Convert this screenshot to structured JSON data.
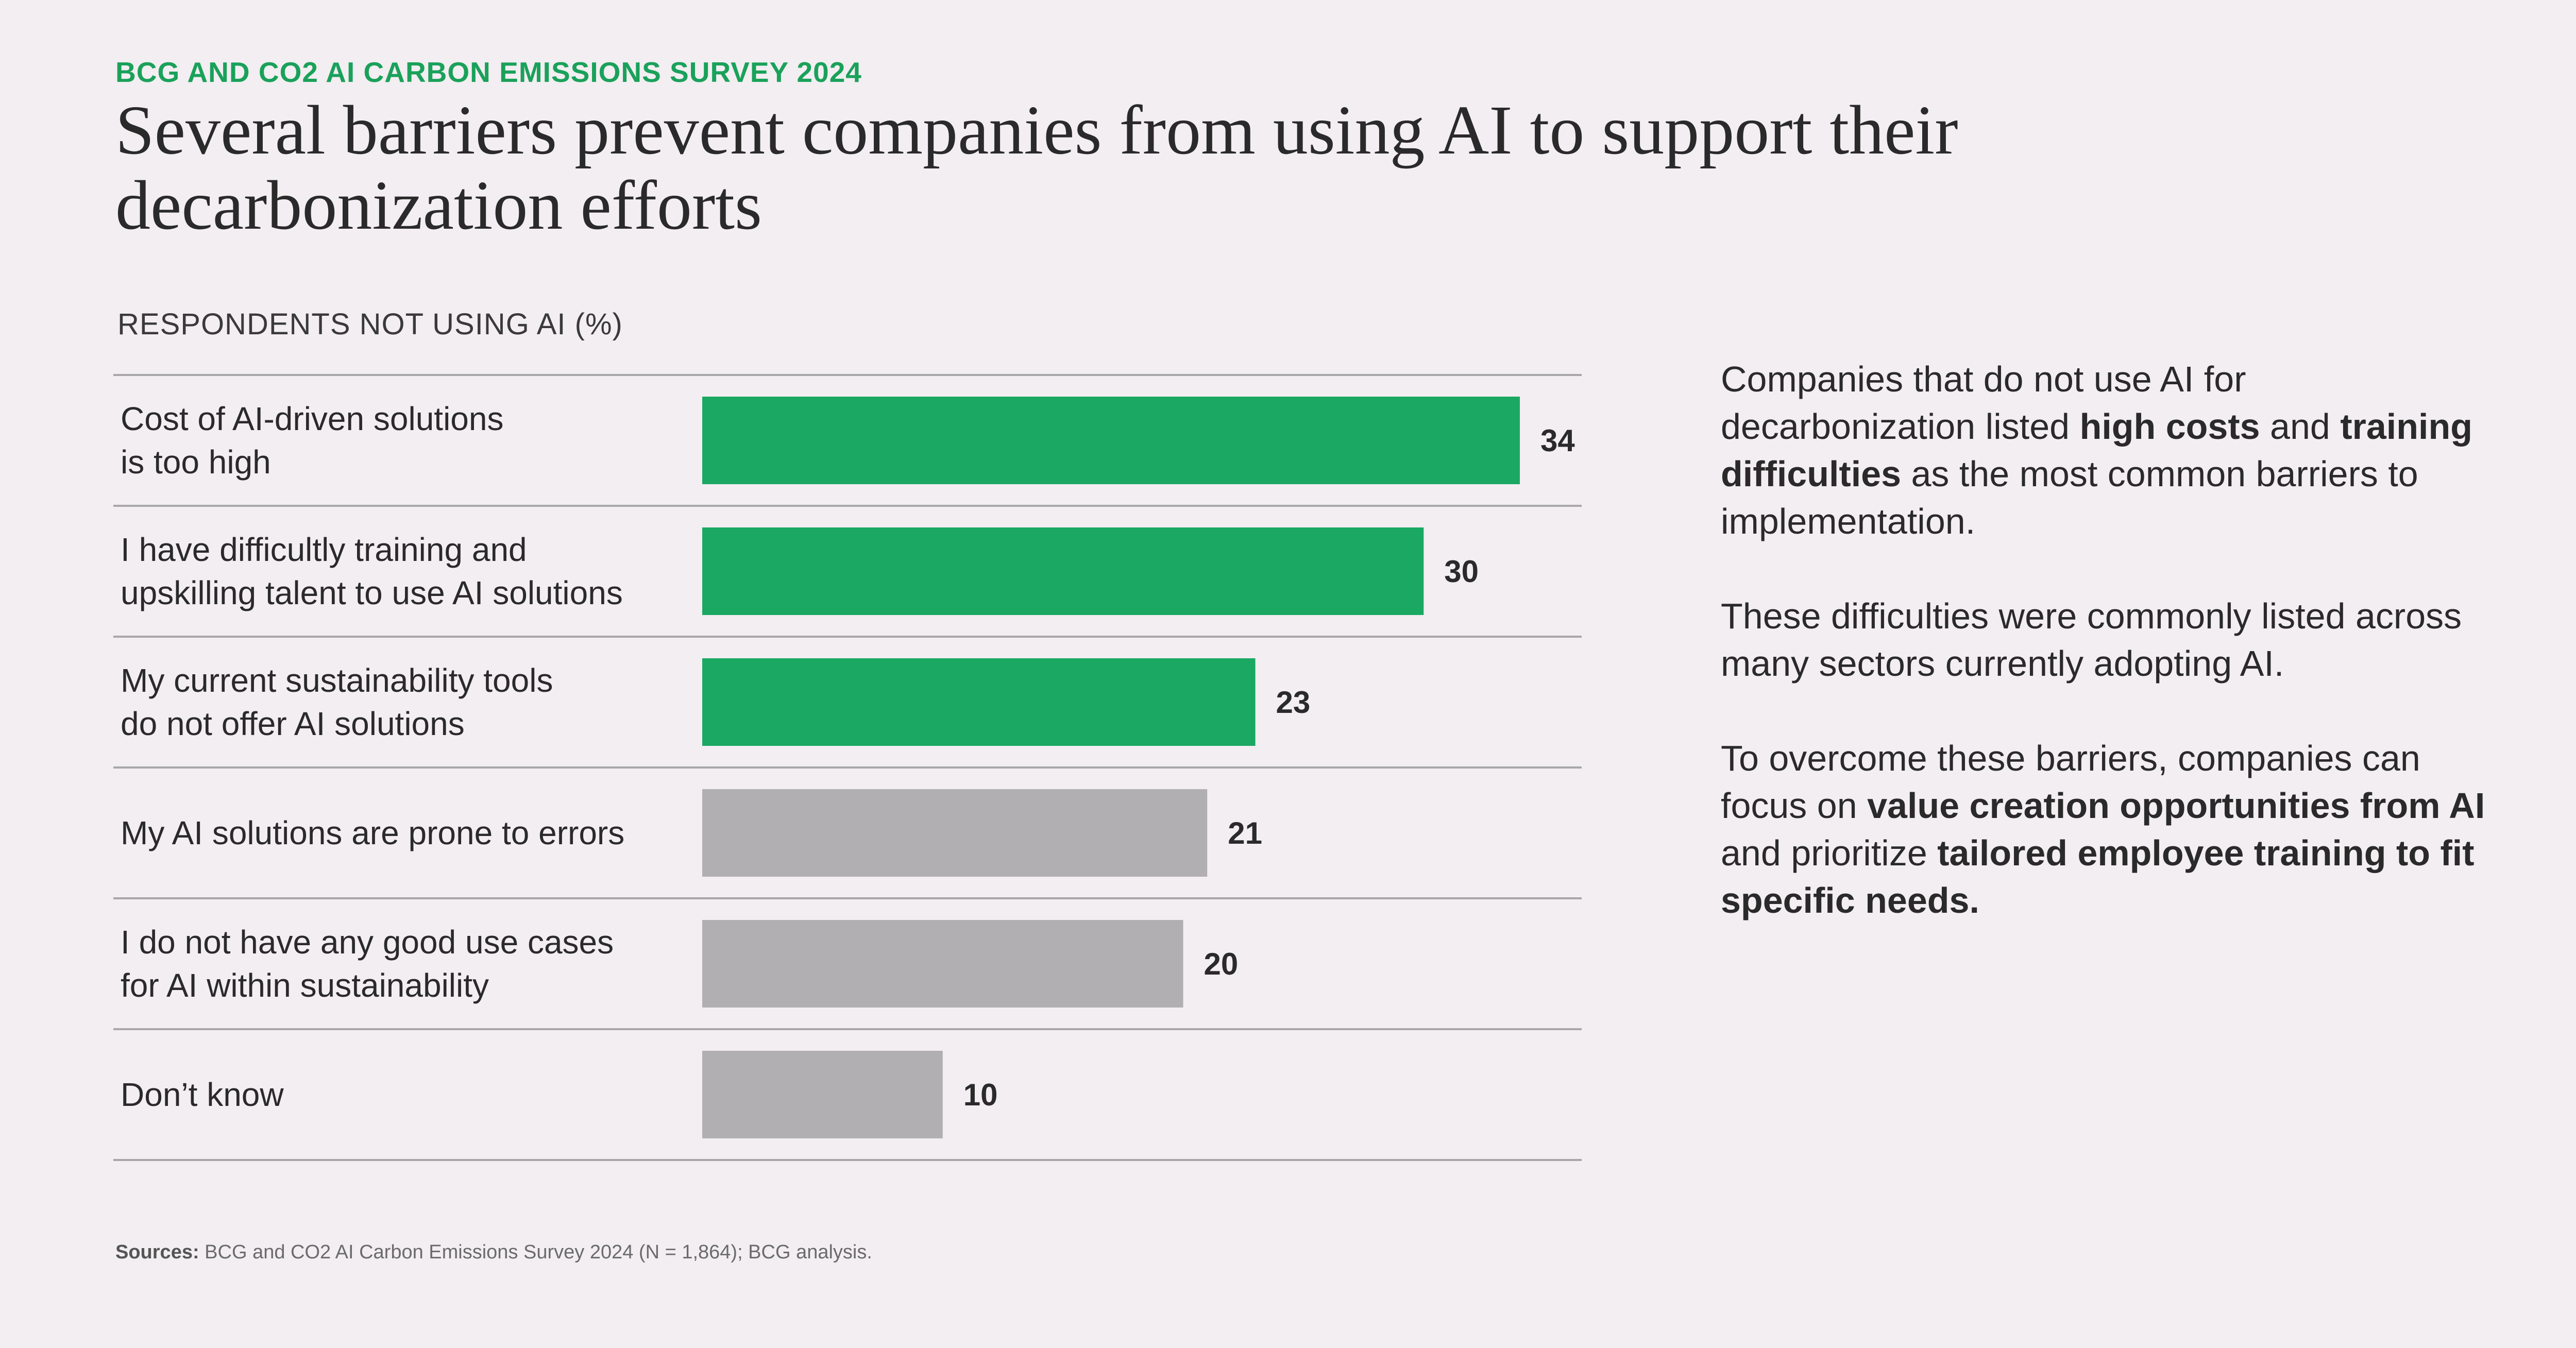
{
  "header": {
    "kicker": "BCG AND CO2 AI CARBON EMISSIONS SURVEY 2024",
    "title": "Several barriers prevent companies from using AI to support their decarbonization efforts"
  },
  "chart_data": {
    "type": "bar",
    "orientation": "horizontal",
    "title": "RESPONDENTS NOT USING AI (%)",
    "categories": [
      [
        "Cost of AI-driven solutions",
        "is too high"
      ],
      [
        "I have difficultly training and",
        "upskilling talent to use AI solutions"
      ],
      [
        "My current sustainability tools",
        "do not offer AI solutions"
      ],
      [
        "My AI solutions are prone to errors"
      ],
      [
        "I do not have any good use cases",
        "for AI within sustainability"
      ],
      [
        "Don’t know"
      ]
    ],
    "values": [
      34,
      30,
      23,
      21,
      20,
      10
    ],
    "highlighted": [
      true,
      true,
      true,
      false,
      false,
      false
    ],
    "xlim": [
      0,
      34
    ],
    "xlabel": "",
    "ylabel": ""
  },
  "colors": {
    "highlight": "#1aa863",
    "muted": "#b1afb1",
    "divider": "#a9a7a9",
    "background": "#f2eef1",
    "kicker": "#1aa15a"
  },
  "commentary": {
    "p1": {
      "t1": "Companies that do not use AI for decarbonization listed ",
      "b1": "high costs",
      "t2": " and ",
      "b2": "training difficulties",
      "t3": " as the most common barriers to implementation."
    },
    "p2": {
      "t1": "These difficulties were commonly listed across many sectors currently adopting AI."
    },
    "p3": {
      "t1": "To overcome these barriers, companies can focus on ",
      "b1": "value creation opportunities from AI",
      "t2": " and prioritize ",
      "b2": "tailored employee training to fit specific needs."
    }
  },
  "source": {
    "label": "Sources:",
    "text": " BCG and CO2 AI Carbon Emissions Survey 2024 (N = 1,864); BCG analysis."
  }
}
